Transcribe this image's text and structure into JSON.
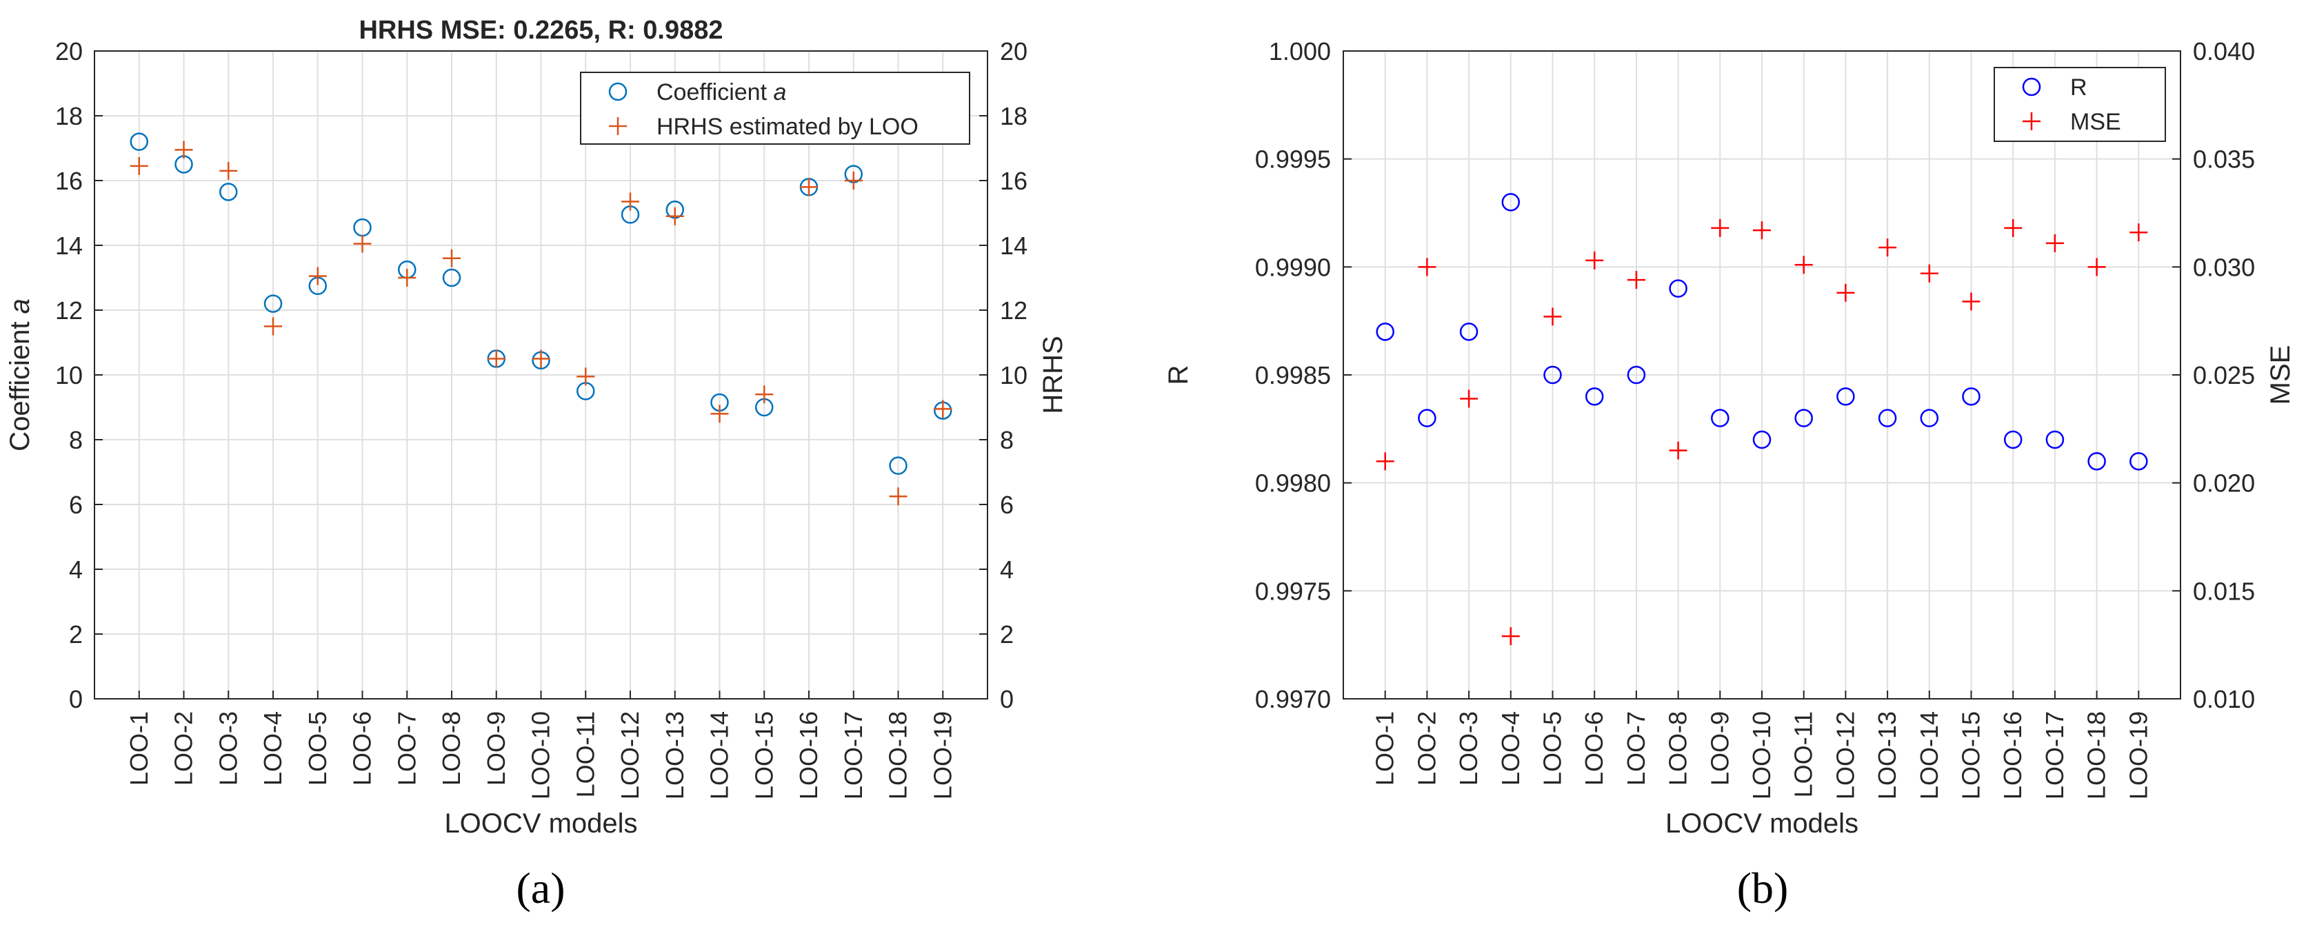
{
  "chart_data": [
    {
      "panel": "a",
      "panel_label": "(a)",
      "type": "scatter",
      "title": "HRHS MSE: 0.2265, R: 0.9882",
      "xlabel": "LOOCV models",
      "ylabel_left": "Coefficient",
      "ylabel_left_italic": "a",
      "ylabel_right": "HRHS",
      "categories": [
        "LOO-1",
        "LOO-2",
        "LOO-3",
        "LOO-4",
        "LOO-5",
        "LOO-6",
        "LOO-7",
        "LOO-8",
        "LOO-9",
        "LOO-10",
        "LOO-11",
        "LOO-12",
        "LOO-13",
        "LOO-14",
        "LOO-15",
        "LOO-16",
        "LOO-17",
        "LOO-18",
        "LOO-19"
      ],
      "ylim_left": [
        0,
        20
      ],
      "ylim_right": [
        0,
        20
      ],
      "yticks_left": [
        "0",
        "2",
        "4",
        "6",
        "8",
        "10",
        "12",
        "14",
        "16",
        "18",
        "20"
      ],
      "yticks_right": [
        "0",
        "2",
        "4",
        "6",
        "8",
        "10",
        "12",
        "14",
        "16",
        "18",
        "20"
      ],
      "grid": true,
      "legend_position": "top-right",
      "series": [
        {
          "name": "Coefficient",
          "name_italic": "a",
          "marker": "circle",
          "axis": "left",
          "color": "#0072BD",
          "values": [
            17.2,
            16.5,
            15.65,
            12.2,
            12.75,
            14.55,
            13.25,
            13.0,
            10.5,
            10.45,
            9.5,
            14.95,
            15.1,
            9.15,
            9.0,
            15.8,
            16.2,
            7.2,
            8.9
          ]
        },
        {
          "name": "HRHS estimated by LOO",
          "name_italic": "",
          "marker": "plus",
          "axis": "right",
          "color": "#D95319",
          "values": [
            16.45,
            16.95,
            16.3,
            11.5,
            13.05,
            14.05,
            13.0,
            13.6,
            10.5,
            10.5,
            9.95,
            15.35,
            14.9,
            8.8,
            9.4,
            15.8,
            16.0,
            6.25,
            8.95
          ]
        }
      ]
    },
    {
      "panel": "b",
      "panel_label": "(b)",
      "type": "scatter",
      "title": "",
      "xlabel": "LOOCV models",
      "ylabel_left": "R",
      "ylabel_left_italic": "",
      "ylabel_right": "MSE",
      "categories": [
        "LOO-1",
        "LOO-2",
        "LOO-3",
        "LOO-4",
        "LOO-5",
        "LOO-6",
        "LOO-7",
        "LOO-8",
        "LOO-9",
        "LOO-10",
        "LOO-11",
        "LOO-12",
        "LOO-13",
        "LOO-14",
        "LOO-15",
        "LOO-16",
        "LOO-17",
        "LOO-18",
        "LOO-19"
      ],
      "ylim_left": [
        0.997,
        1.0
      ],
      "ylim_right": [
        0.01,
        0.04
      ],
      "yticks_left": [
        "0.9970",
        "0.9975",
        "0.9980",
        "0.9985",
        "0.9990",
        "0.9995",
        "1.000"
      ],
      "yticks_right": [
        "0.010",
        "0.015",
        "0.020",
        "0.025",
        "0.030",
        "0.035",
        "0.040"
      ],
      "grid": true,
      "legend_position": "top-right",
      "series": [
        {
          "name": "R",
          "name_italic": "",
          "marker": "circle",
          "axis": "left",
          "color": "#0000FF",
          "values": [
            0.9987,
            0.9983,
            0.9987,
            0.9993,
            0.9985,
            0.9984,
            0.9985,
            0.9989,
            0.9983,
            0.9982,
            0.9983,
            0.9984,
            0.9983,
            0.9983,
            0.9984,
            0.9982,
            0.9982,
            0.9981,
            0.9981
          ]
        },
        {
          "name": "MSE",
          "name_italic": "",
          "marker": "plus",
          "axis": "right",
          "color": "#FF0000",
          "values": [
            0.021,
            0.03,
            0.0239,
            0.0129,
            0.0277,
            0.0303,
            0.0294,
            0.0215,
            0.0318,
            0.0317,
            0.0301,
            0.0288,
            0.0309,
            0.0297,
            0.0284,
            0.0318,
            0.0311,
            0.03,
            0.0316
          ]
        }
      ]
    }
  ]
}
